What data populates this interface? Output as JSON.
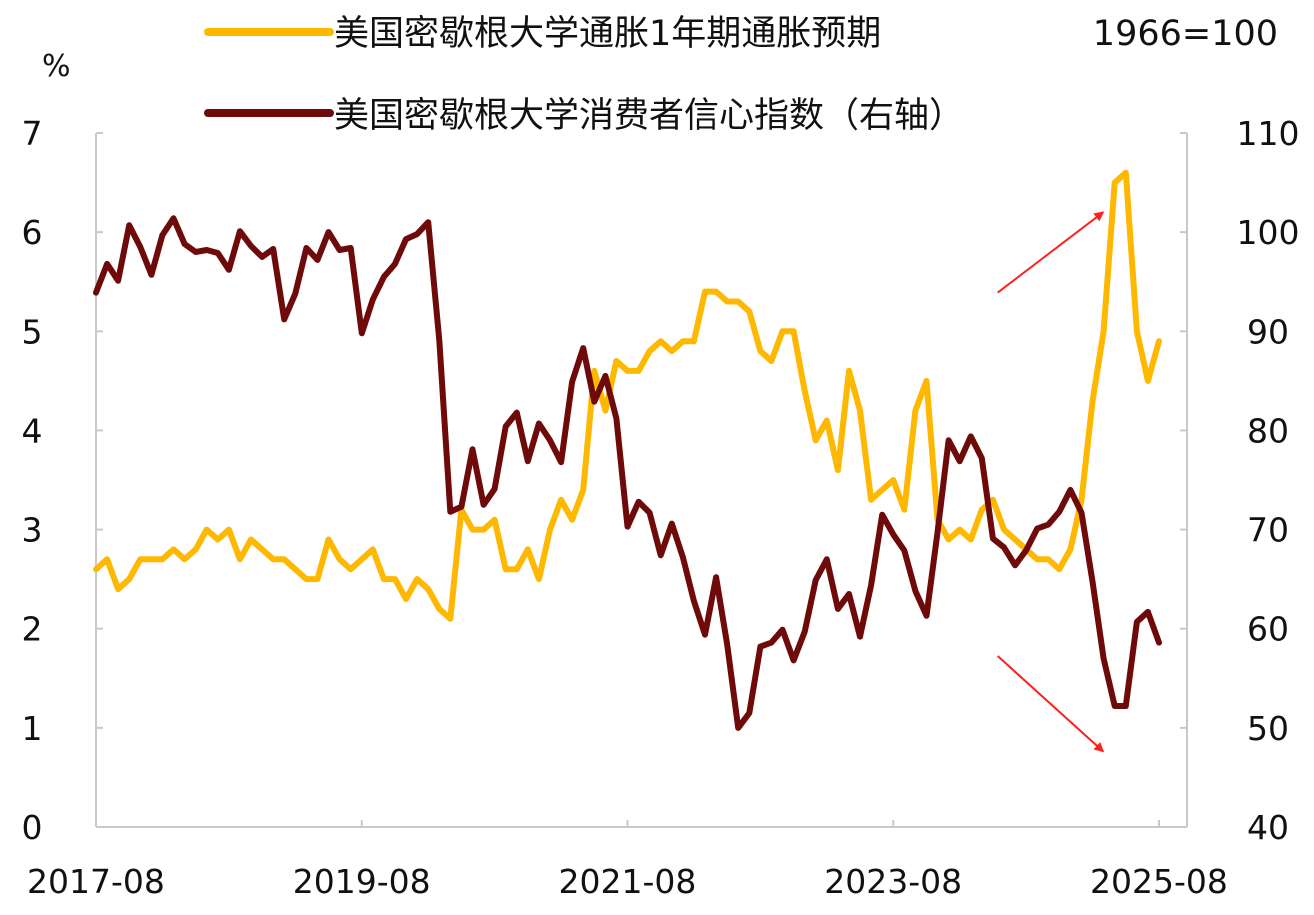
{
  "chart_data": {
    "type": "line",
    "title": "",
    "left_axis_unit": "%",
    "ylim_left": [
      0,
      7
    ],
    "yticks_left": [
      "0",
      "1",
      "2",
      "3",
      "4",
      "5",
      "6",
      "7"
    ],
    "ylim_right": [
      40,
      110
    ],
    "yticks_right": [
      "40",
      "50",
      "60",
      "70",
      "80",
      "90",
      "100",
      "110"
    ],
    "xlim": [
      "2017-08",
      "2025-08"
    ],
    "xticks": [
      "2017-08",
      "2019-08",
      "2021-08",
      "2023-08",
      "2025-08"
    ],
    "grid": false,
    "legend_position": "top",
    "legend_note": "1966=100",
    "series": [
      {
        "name": "美国密歇根大学通胀1年期通胀预期",
        "axis": "left",
        "color": "#FFB800",
        "x": [
          "2017-08",
          "2017-09",
          "2017-10",
          "2017-11",
          "2017-12",
          "2018-01",
          "2018-02",
          "2018-03",
          "2018-04",
          "2018-05",
          "2018-06",
          "2018-07",
          "2018-08",
          "2018-09",
          "2018-10",
          "2018-11",
          "2018-12",
          "2019-01",
          "2019-02",
          "2019-03",
          "2019-04",
          "2019-05",
          "2019-06",
          "2019-07",
          "2019-08",
          "2019-09",
          "2019-10",
          "2019-11",
          "2019-12",
          "2020-01",
          "2020-02",
          "2020-03",
          "2020-04",
          "2020-05",
          "2020-06",
          "2020-07",
          "2020-08",
          "2020-09",
          "2020-10",
          "2020-11",
          "2020-12",
          "2021-01",
          "2021-02",
          "2021-03",
          "2021-04",
          "2021-05",
          "2021-06",
          "2021-07",
          "2021-08",
          "2021-09",
          "2021-10",
          "2021-11",
          "2021-12",
          "2022-01",
          "2022-02",
          "2022-03",
          "2022-04",
          "2022-05",
          "2022-06",
          "2022-07",
          "2022-08",
          "2022-09",
          "2022-10",
          "2022-11",
          "2022-12",
          "2023-01",
          "2023-02",
          "2023-03",
          "2023-04",
          "2023-05",
          "2023-06",
          "2023-07",
          "2023-08",
          "2023-09",
          "2023-10",
          "2023-11",
          "2023-12",
          "2024-01",
          "2024-02",
          "2024-03",
          "2024-04",
          "2024-05",
          "2024-06",
          "2024-07",
          "2024-08",
          "2024-09",
          "2024-10",
          "2024-11",
          "2024-12",
          "2025-01",
          "2025-02",
          "2025-03",
          "2025-04",
          "2025-05",
          "2025-06",
          "2025-07",
          "2025-08"
        ],
        "values": [
          2.6,
          2.7,
          2.4,
          2.5,
          2.7,
          2.7,
          2.7,
          2.8,
          2.7,
          2.8,
          3.0,
          2.9,
          3.0,
          2.7,
          2.9,
          2.8,
          2.7,
          2.7,
          2.6,
          2.5,
          2.5,
          2.9,
          2.7,
          2.6,
          2.7,
          2.8,
          2.5,
          2.5,
          2.3,
          2.5,
          2.4,
          2.2,
          2.1,
          3.2,
          3.0,
          3.0,
          3.1,
          2.6,
          2.6,
          2.8,
          2.5,
          3.0,
          3.3,
          3.1,
          3.4,
          4.6,
          4.2,
          4.7,
          4.6,
          4.6,
          4.8,
          4.9,
          4.8,
          4.9,
          4.9,
          5.4,
          5.4,
          5.3,
          5.3,
          5.2,
          4.8,
          4.7,
          5.0,
          5.0,
          4.4,
          3.9,
          4.1,
          3.6,
          4.6,
          4.2,
          3.3,
          3.4,
          3.5,
          3.2,
          4.2,
          4.5,
          3.1,
          2.9,
          3.0,
          2.9,
          3.2,
          3.3,
          3.0,
          2.9,
          2.8,
          2.7,
          2.7,
          2.6,
          2.8,
          3.3,
          4.3,
          5.0,
          6.5,
          6.6,
          5.0,
          4.5,
          4.9
        ]
      },
      {
        "name": "美国密歇根大学消费者信心指数（右轴）",
        "axis": "right",
        "color": "#6E0A0A",
        "x": [
          "2017-08",
          "2017-09",
          "2017-10",
          "2017-11",
          "2017-12",
          "2018-01",
          "2018-02",
          "2018-03",
          "2018-04",
          "2018-05",
          "2018-06",
          "2018-07",
          "2018-08",
          "2018-09",
          "2018-10",
          "2018-11",
          "2018-12",
          "2019-01",
          "2019-02",
          "2019-03",
          "2019-04",
          "2019-05",
          "2019-06",
          "2019-07",
          "2019-08",
          "2019-09",
          "2019-10",
          "2019-11",
          "2019-12",
          "2020-01",
          "2020-02",
          "2020-03",
          "2020-04",
          "2020-05",
          "2020-06",
          "2020-07",
          "2020-08",
          "2020-09",
          "2020-10",
          "2020-11",
          "2020-12",
          "2021-01",
          "2021-02",
          "2021-03",
          "2021-04",
          "2021-05",
          "2021-06",
          "2021-07",
          "2021-08",
          "2021-09",
          "2021-10",
          "2021-11",
          "2021-12",
          "2022-01",
          "2022-02",
          "2022-03",
          "2022-04",
          "2022-05",
          "2022-06",
          "2022-07",
          "2022-08",
          "2022-09",
          "2022-10",
          "2022-11",
          "2022-12",
          "2023-01",
          "2023-02",
          "2023-03",
          "2023-04",
          "2023-05",
          "2023-06",
          "2023-07",
          "2023-08",
          "2023-09",
          "2023-10",
          "2023-11",
          "2023-12",
          "2024-01",
          "2024-02",
          "2024-03",
          "2024-04",
          "2024-05",
          "2024-06",
          "2024-07",
          "2024-08",
          "2024-09",
          "2024-10",
          "2024-11",
          "2024-12",
          "2025-01",
          "2025-02",
          "2025-03",
          "2025-04",
          "2025-05",
          "2025-06",
          "2025-07",
          "2025-08"
        ],
        "values": [
          93.9,
          96.8,
          95.1,
          100.7,
          98.5,
          95.7,
          99.7,
          101.4,
          98.8,
          98.0,
          98.2,
          97.9,
          96.2,
          100.1,
          98.6,
          97.5,
          98.3,
          91.2,
          93.8,
          98.4,
          97.2,
          100.0,
          98.2,
          98.4,
          89.8,
          93.2,
          95.5,
          96.8,
          99.3,
          99.8,
          101.0,
          89.1,
          71.8,
          72.3,
          78.1,
          72.5,
          74.1,
          80.4,
          81.8,
          76.9,
          80.7,
          79.0,
          76.8,
          84.9,
          88.3,
          82.9,
          85.5,
          81.2,
          70.3,
          72.8,
          71.7,
          67.4,
          70.6,
          67.2,
          62.8,
          59.4,
          65.2,
          58.4,
          50.0,
          51.5,
          58.2,
          58.6,
          59.9,
          56.8,
          59.7,
          64.9,
          67.0,
          62.0,
          63.5,
          59.2,
          64.4,
          71.5,
          69.5,
          67.9,
          63.8,
          61.3,
          69.7,
          79.0,
          76.9,
          79.4,
          77.2,
          69.1,
          68.2,
          66.4,
          67.9,
          70.1,
          70.5,
          71.8,
          74.0,
          71.7,
          64.7,
          57.0,
          52.2,
          52.2,
          60.7,
          61.7,
          58.6
        ]
      }
    ],
    "annotations": [
      {
        "type": "arrow",
        "direction": "up-right",
        "color": "#FF2020",
        "target_series": "美国密歇根大学通胀1年期通胀预期"
      },
      {
        "type": "arrow",
        "direction": "down-right",
        "color": "#FF2020",
        "target_series": "美国密歇根大学消费者信心指数（右轴）"
      }
    ]
  }
}
